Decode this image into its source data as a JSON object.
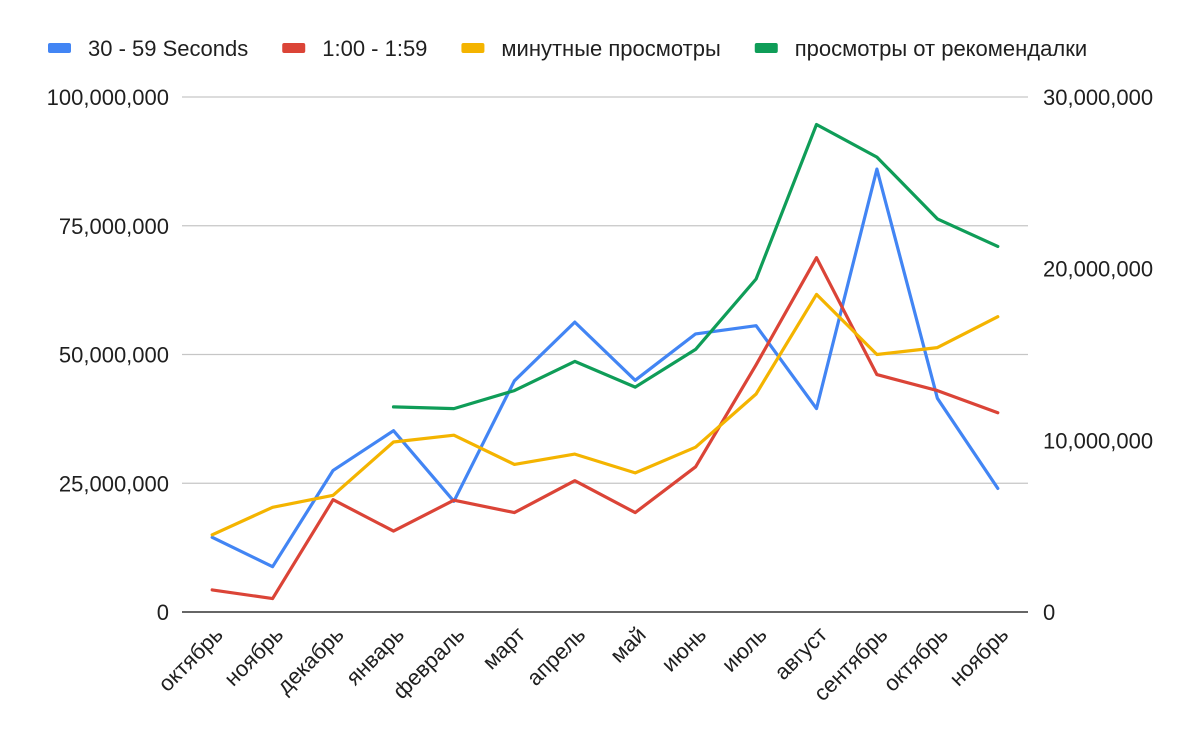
{
  "chart_data": {
    "type": "line",
    "title": "",
    "xlabel": "",
    "ylabel": "",
    "categories": [
      "октябрь",
      "ноябрь",
      "декабрь",
      "январь",
      "февраль",
      "март",
      "апрель",
      "май",
      "июнь",
      "июль",
      "август",
      "сентябрь",
      "октябрь",
      "ноябрь"
    ],
    "y_left": {
      "ylim": [
        0,
        100000000
      ],
      "ticks": [
        0,
        25000000,
        50000000,
        75000000,
        100000000
      ],
      "tick_labels": [
        "0",
        "25,000,000",
        "50,000,000",
        "75,000,000",
        "100,000,000"
      ]
    },
    "y_right": {
      "ylim": [
        0,
        30000000
      ],
      "ticks": [
        0,
        10000000,
        20000000,
        30000000
      ],
      "tick_labels": [
        "0",
        "10,000,000",
        "20,000,000",
        "30,000,000"
      ]
    },
    "grid": true,
    "legend_position": "top",
    "series": [
      {
        "name": "30 - 59 Seconds",
        "axis": "left",
        "color": "#4285F4",
        "values": [
          14500000,
          8800000,
          27500000,
          35200000,
          21500000,
          44900000,
          56300000,
          45000000,
          54000000,
          55600000,
          39500000,
          86000000,
          41500000,
          24000000
        ]
      },
      {
        "name": "1:00 - 1:59",
        "axis": "left",
        "color": "#DB4437",
        "values": [
          4300000,
          2600000,
          21800000,
          15700000,
          21700000,
          19300000,
          25500000,
          19300000,
          28200000,
          48000000,
          68800000,
          46100000,
          43000000,
          38700000
        ]
      },
      {
        "name": "минутные просмотры",
        "axis": "right",
        "color": "#F4B400",
        "values": [
          4500000,
          6100000,
          6800000,
          9900000,
          10300000,
          8600000,
          9200000,
          8100000,
          9600000,
          12700000,
          18500000,
          15000000,
          15400000,
          17200000
        ]
      },
      {
        "name": "просмотры от рекомендалки",
        "axis": "right",
        "color": "#0F9D58",
        "values": [
          null,
          null,
          null,
          11950000,
          11850000,
          12900000,
          14600000,
          13100000,
          15300000,
          19400000,
          28400000,
          26500000,
          22900000,
          21300000
        ]
      }
    ]
  }
}
